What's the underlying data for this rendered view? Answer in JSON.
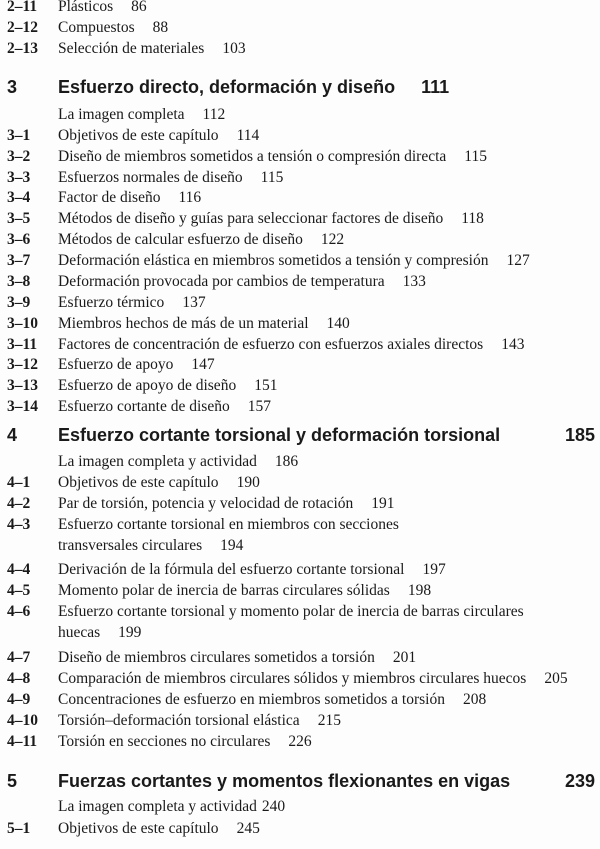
{
  "rows": [
    {
      "type": "entry",
      "num": "2–11",
      "text": "Plásticos",
      "page": "86"
    },
    {
      "type": "entry",
      "num": "2–12",
      "text": "Compuestos",
      "page": "88"
    },
    {
      "type": "entry",
      "num": "2–13",
      "text": "Selección de materiales",
      "page": "103"
    },
    {
      "type": "chapter",
      "num": "3",
      "text": "Esfuerzo directo, deformación y diseño",
      "page": "111",
      "inline": true
    },
    {
      "type": "entry",
      "num": "",
      "text": "La imagen completa",
      "page": "112"
    },
    {
      "type": "entry",
      "num": "3–1",
      "text": "Objetivos de este capítulo",
      "page": "114"
    },
    {
      "type": "entry",
      "num": "3–2",
      "text": "Diseño de miembros sometidos a tensión o compresión directa",
      "page": "115"
    },
    {
      "type": "entry",
      "num": "3–3",
      "text": "Esfuerzos normales de diseño",
      "page": "115"
    },
    {
      "type": "entry",
      "num": "3–4",
      "text": "Factor de diseño",
      "page": "116"
    },
    {
      "type": "entry",
      "num": "3–5",
      "text": "Métodos de diseño y guías para seleccionar factores de diseño",
      "page": "118"
    },
    {
      "type": "entry",
      "num": "3–6",
      "text": "Métodos de calcular esfuerzo de diseño",
      "page": "122"
    },
    {
      "type": "entry",
      "num": "3–7",
      "text": "Deformación elástica en miembros sometidos a tensión y compresión",
      "page": "127"
    },
    {
      "type": "entry",
      "num": "3–8",
      "text": "Deformación provocada por cambios de temperatura",
      "page": "133"
    },
    {
      "type": "entry",
      "num": "3–9",
      "text": "Esfuerzo térmico",
      "page": "137"
    },
    {
      "type": "entry",
      "num": "3–10",
      "text": "Miembros hechos de más de un material",
      "page": "140"
    },
    {
      "type": "entry",
      "num": "3–11",
      "text": "Factores de concentración de esfuerzo con esfuerzos axiales directos",
      "page": "143"
    },
    {
      "type": "entry",
      "num": "3–12",
      "text": "Esfuerzo de apoyo",
      "page": "147"
    },
    {
      "type": "entry",
      "num": "3–13",
      "text": "Esfuerzo de apoyo de diseño",
      "page": "151"
    },
    {
      "type": "entry",
      "num": "3–14",
      "text": "Esfuerzo cortante de diseño",
      "page": "157"
    },
    {
      "type": "chapter",
      "num": "4",
      "text": "Esfuerzo cortante torsional y deformación torsional",
      "page": "185"
    },
    {
      "type": "entry",
      "num": "",
      "text": "La imagen completa y actividad",
      "page": "186"
    },
    {
      "type": "entry",
      "num": "4–1",
      "text": "Objetivos de este capítulo",
      "page": "190"
    },
    {
      "type": "entry",
      "num": "4–2",
      "text": "Par de torsión, potencia y velocidad de rotación",
      "page": "191"
    },
    {
      "type": "entry",
      "num": "4–3",
      "text": "Esfuerzo cortante torsional en miembros con secciones",
      "cont": "transversales circulares",
      "page": "194"
    },
    {
      "type": "entry",
      "num": "4–4",
      "text": "Derivación de la fórmula del esfuerzo cortante torsional",
      "page": "197"
    },
    {
      "type": "entry",
      "num": "4–5",
      "text": "Momento polar de inercia de barras circulares sólidas",
      "page": "198"
    },
    {
      "type": "entry",
      "num": "4–6",
      "text": "Esfuerzo cortante torsional y momento polar de inercia de barras circulares",
      "cont": "huecas",
      "page": "199"
    },
    {
      "type": "entry",
      "num": "4–7",
      "text": "Diseño de miembros circulares sometidos a torsión",
      "page": "201"
    },
    {
      "type": "entry",
      "num": "4–8",
      "text": "Comparación de miembros circulares sólidos y miembros circulares huecos",
      "page": "205"
    },
    {
      "type": "entry",
      "num": "4–9",
      "text": "Concentraciones de esfuerzo en miembros sometidos a torsión",
      "page": "208"
    },
    {
      "type": "entry",
      "num": "4–10",
      "text": "Torsión–deformación torsional elástica",
      "page": "215"
    },
    {
      "type": "entry",
      "num": "4–11",
      "text": "Torsión en secciones no circulares",
      "page": "226"
    },
    {
      "type": "chapter",
      "num": "5",
      "text": "Fuerzas cortantes y momentos flexionantes en vigas",
      "page": "239"
    },
    {
      "type": "entry",
      "num": "",
      "text": "La imagen completa y actividad",
      "page": "240",
      "tight": true
    },
    {
      "type": "entry",
      "num": "5–1",
      "text": "Objetivos de este capítulo",
      "page": "245"
    }
  ]
}
